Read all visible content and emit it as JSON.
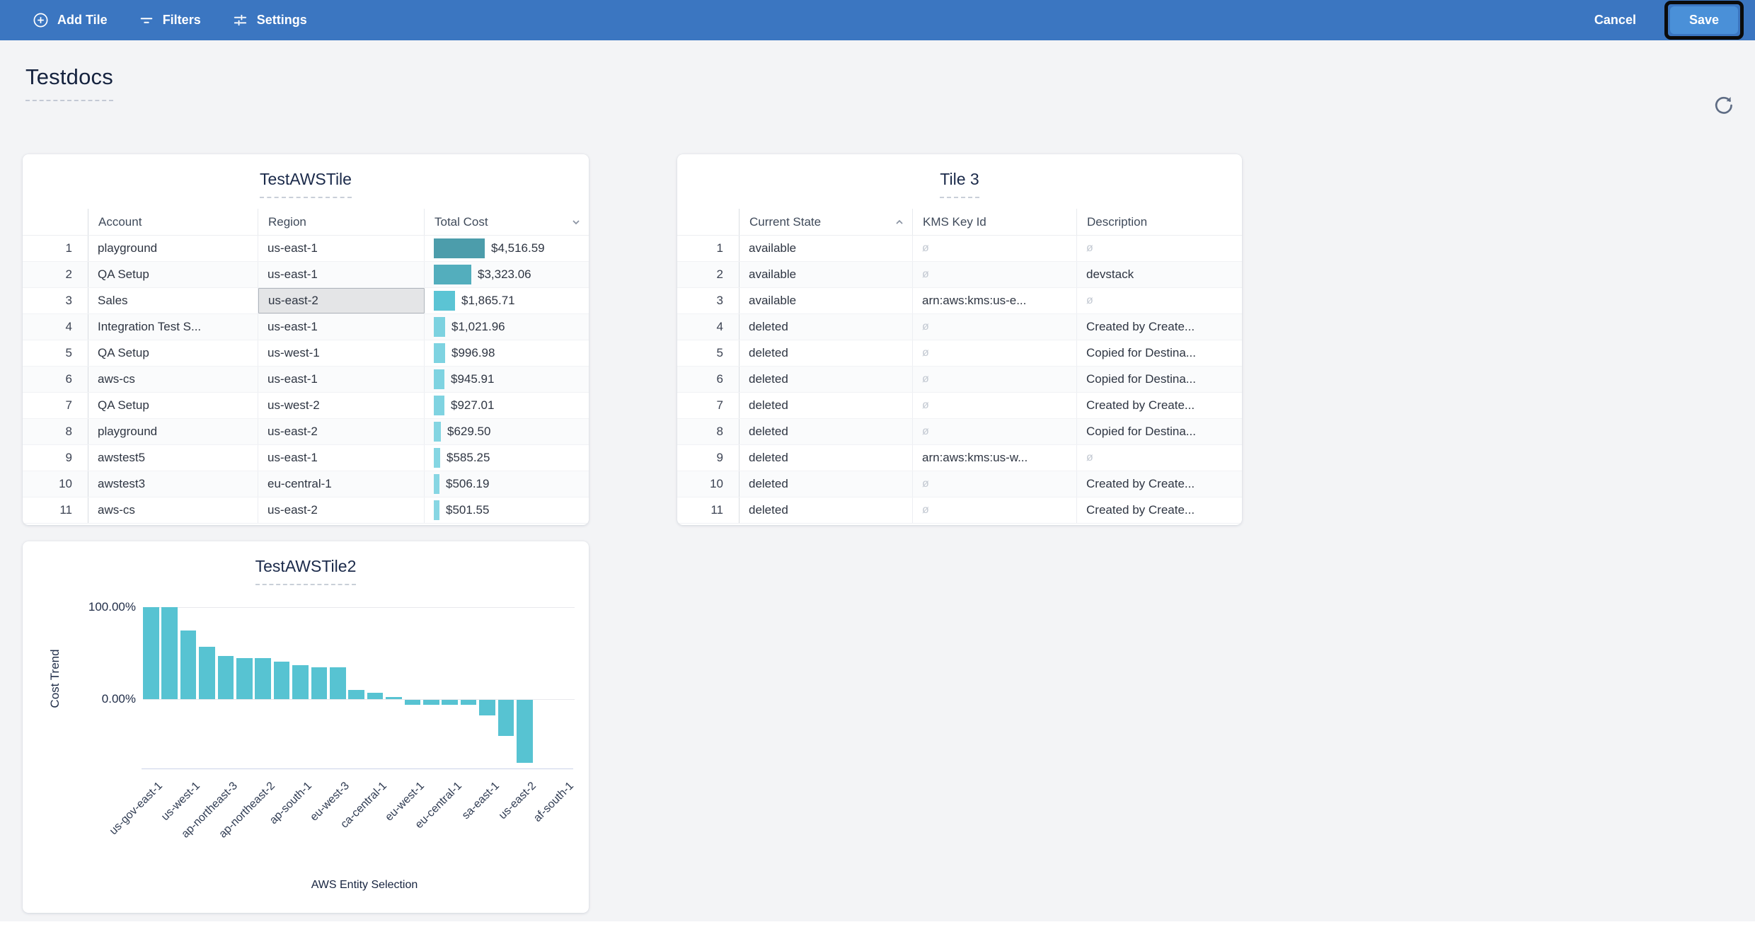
{
  "toolbar": {
    "add_tile_label": "Add Tile",
    "filters_label": "Filters",
    "settings_label": "Settings",
    "cancel_label": "Cancel",
    "save_label": "Save",
    "bar_color": "#3b76c1",
    "save_button_color": "#4a90d8"
  },
  "page": {
    "title": "Testdocs"
  },
  "tiles": {
    "table1": {
      "title": "TestAWSTile",
      "columns": [
        "Account",
        "Region",
        "Total Cost"
      ],
      "sort": {
        "column": "Total Cost",
        "direction": "desc"
      },
      "selected_cell": {
        "row": 3,
        "column": "Region"
      },
      "max_cost_value": 4516.59,
      "bar_colors": [
        "#4c9dab",
        "#53aebd",
        "#5bc4d4",
        "#7cd2e0",
        "#7ed3e1",
        "#7ed3e1",
        "#7fd3e1",
        "#84d5e2",
        "#85d6e3",
        "#87d6e3",
        "#87d6e3"
      ],
      "rows": [
        {
          "num": 1,
          "account": "playground",
          "region": "us-east-1",
          "cost_label": "$4,516.59",
          "cost_value": 4516.59
        },
        {
          "num": 2,
          "account": "QA Setup",
          "region": "us-east-1",
          "cost_label": "$3,323.06",
          "cost_value": 3323.06
        },
        {
          "num": 3,
          "account": "Sales",
          "region": "us-east-2",
          "cost_label": "$1,865.71",
          "cost_value": 1865.71
        },
        {
          "num": 4,
          "account": "Integration Test S...",
          "region": "us-east-1",
          "cost_label": "$1,021.96",
          "cost_value": 1021.96
        },
        {
          "num": 5,
          "account": "QA Setup",
          "region": "us-west-1",
          "cost_label": "$996.98",
          "cost_value": 996.98
        },
        {
          "num": 6,
          "account": "aws-cs",
          "region": "us-east-1",
          "cost_label": "$945.91",
          "cost_value": 945.91
        },
        {
          "num": 7,
          "account": "QA Setup",
          "region": "us-west-2",
          "cost_label": "$927.01",
          "cost_value": 927.01
        },
        {
          "num": 8,
          "account": "playground",
          "region": "us-east-2",
          "cost_label": "$629.50",
          "cost_value": 629.5
        },
        {
          "num": 9,
          "account": "awstest5",
          "region": "us-east-1",
          "cost_label": "$585.25",
          "cost_value": 585.25
        },
        {
          "num": 10,
          "account": "awstest3",
          "region": "eu-central-1",
          "cost_label": "$506.19",
          "cost_value": 506.19
        },
        {
          "num": 11,
          "account": "aws-cs",
          "region": "us-east-2",
          "cost_label": "$501.55",
          "cost_value": 501.55
        }
      ]
    },
    "table2": {
      "title": "Tile 3",
      "columns": [
        "Current State",
        "KMS Key Id",
        "Description"
      ],
      "sort": {
        "column": "Current State",
        "direction": "asc"
      },
      "null_symbol": "ø",
      "rows": [
        {
          "num": 1,
          "state": "available",
          "kms": null,
          "description": null
        },
        {
          "num": 2,
          "state": "available",
          "kms": null,
          "description": "devstack"
        },
        {
          "num": 3,
          "state": "available",
          "kms": "arn:aws:kms:us-e...",
          "description": null
        },
        {
          "num": 4,
          "state": "deleted",
          "kms": null,
          "description": "Created by Create..."
        },
        {
          "num": 5,
          "state": "deleted",
          "kms": null,
          "description": "Copied for Destina..."
        },
        {
          "num": 6,
          "state": "deleted",
          "kms": null,
          "description": "Copied for Destina..."
        },
        {
          "num": 7,
          "state": "deleted",
          "kms": null,
          "description": "Created by Create..."
        },
        {
          "num": 8,
          "state": "deleted",
          "kms": null,
          "description": "Copied for Destina..."
        },
        {
          "num": 9,
          "state": "deleted",
          "kms": "arn:aws:kms:us-w...",
          "description": null
        },
        {
          "num": 10,
          "state": "deleted",
          "kms": null,
          "description": "Created by Create..."
        },
        {
          "num": 11,
          "state": "deleted",
          "kms": null,
          "description": "Created by Create..."
        }
      ]
    }
  },
  "chart_data": {
    "type": "bar",
    "title": "TestAWSTile2",
    "xlabel": "AWS Entity Selection",
    "ylabel": "Cost Trend",
    "ytick_labels": [
      "100.00%",
      "0.00%"
    ],
    "yticks": [
      100,
      0
    ],
    "ylim": [
      -75,
      100
    ],
    "grid": "horizontal",
    "bar_color": "#57c3d2",
    "x_tick_labels": [
      "us-gov-east-1",
      "us-west-1",
      "ap-northeast-3",
      "ap-northeast-2",
      "ap-south-1",
      "eu-west-3",
      "ca-central-1",
      "eu-west-1",
      "eu-central-1",
      "sa-east-1",
      "us-east-2",
      "af-south-1"
    ],
    "label_every_n_bars": 2,
    "values_pct": [
      100,
      100,
      75,
      57,
      47,
      45,
      45,
      41,
      37,
      35,
      35,
      10,
      7,
      2,
      -5.5,
      -5.5,
      -5.5,
      -5.5,
      -17,
      -39,
      -68.5,
      0,
      0
    ]
  }
}
